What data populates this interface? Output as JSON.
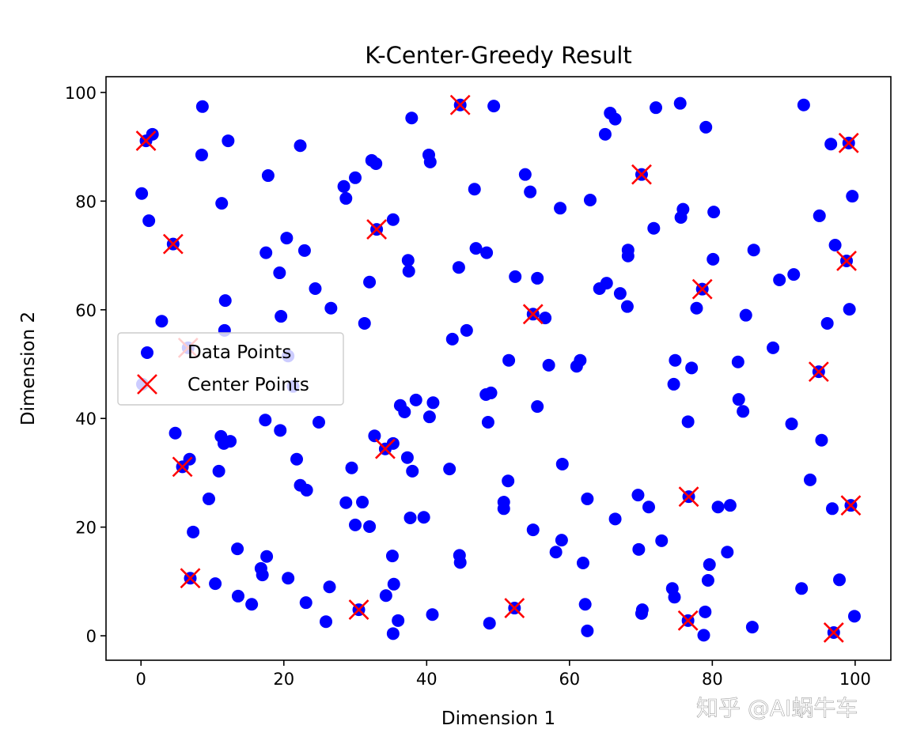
{
  "chart_data": {
    "type": "scatter",
    "title": "K-Center-Greedy Result",
    "xlabel": "Dimension 1",
    "ylabel": "Dimension 2",
    "xlim": [
      -4.9,
      105
    ],
    "ylim": [
      -4.5,
      102.9
    ],
    "xticks": [
      0,
      20,
      40,
      60,
      80,
      100
    ],
    "yticks": [
      0,
      20,
      40,
      60,
      80,
      100
    ],
    "grid": false,
    "legend_placement": "center-left",
    "series": [
      {
        "name": "Data Points",
        "color": "#0000ff",
        "marker": "circle",
        "points": [
          [
            0.7,
            91.1
          ],
          [
            1.6,
            92.3
          ],
          [
            0.1,
            81.4
          ],
          [
            1.1,
            76.4
          ],
          [
            2.9,
            57.9
          ],
          [
            4.5,
            72.1
          ],
          [
            8.6,
            97.4
          ],
          [
            8.5,
            88.5
          ],
          [
            12.2,
            91.1
          ],
          [
            11.3,
            79.6
          ],
          [
            11.8,
            61.7
          ],
          [
            11.7,
            56.2
          ],
          [
            17.8,
            84.7
          ],
          [
            22.3,
            90.2
          ],
          [
            17.5,
            70.5
          ],
          [
            20.4,
            73.2
          ],
          [
            22.9,
            70.9
          ],
          [
            19.4,
            66.8
          ],
          [
            19.6,
            58.8
          ],
          [
            24.4,
            63.9
          ],
          [
            26.6,
            60.3
          ],
          [
            28.4,
            82.7
          ],
          [
            28.7,
            80.5
          ],
          [
            30.0,
            84.3
          ],
          [
            32.3,
            87.5
          ],
          [
            32.9,
            86.9
          ],
          [
            33.0,
            74.8
          ],
          [
            35.3,
            76.6
          ],
          [
            37.9,
            95.3
          ],
          [
            40.3,
            88.5
          ],
          [
            40.5,
            87.2
          ],
          [
            32.0,
            65.1
          ],
          [
            31.3,
            57.5
          ],
          [
            37.4,
            69.1
          ],
          [
            37.5,
            67.1
          ],
          [
            44.7,
            97.7
          ],
          [
            49.4,
            97.5
          ],
          [
            46.7,
            82.2
          ],
          [
            44.5,
            67.8
          ],
          [
            46.9,
            71.3
          ],
          [
            48.4,
            70.5
          ],
          [
            53.8,
            84.9
          ],
          [
            54.5,
            81.7
          ],
          [
            52.4,
            66.1
          ],
          [
            55.5,
            65.8
          ],
          [
            58.7,
            78.7
          ],
          [
            62.9,
            80.2
          ],
          [
            54.9,
            59.2
          ],
          [
            56.6,
            58.5
          ],
          [
            43.6,
            54.6
          ],
          [
            45.6,
            56.2
          ],
          [
            51.5,
            50.7
          ],
          [
            57.1,
            49.8
          ],
          [
            61.5,
            50.7
          ],
          [
            61.0,
            49.6
          ],
          [
            55.5,
            42.2
          ],
          [
            48.3,
            44.4
          ],
          [
            49.0,
            44.7
          ],
          [
            48.6,
            39.3
          ],
          [
            36.3,
            42.4
          ],
          [
            36.9,
            41.2
          ],
          [
            38.5,
            43.4
          ],
          [
            40.9,
            42.9
          ],
          [
            40.4,
            40.3
          ],
          [
            65.7,
            96.2
          ],
          [
            66.4,
            95.1
          ],
          [
            65.0,
            92.3
          ],
          [
            72.1,
            97.2
          ],
          [
            75.5,
            98.0
          ],
          [
            79.1,
            93.6
          ],
          [
            70.1,
            84.9
          ],
          [
            71.8,
            75.0
          ],
          [
            75.9,
            78.5
          ],
          [
            75.6,
            77.0
          ],
          [
            80.2,
            78.0
          ],
          [
            68.2,
            71.0
          ],
          [
            68.2,
            69.9
          ],
          [
            65.2,
            64.9
          ],
          [
            64.2,
            63.9
          ],
          [
            67.1,
            63.0
          ],
          [
            68.1,
            60.6
          ],
          [
            78.6,
            63.8
          ],
          [
            77.8,
            60.3
          ],
          [
            80.1,
            69.3
          ],
          [
            85.8,
            71.0
          ],
          [
            84.7,
            59.0
          ],
          [
            89.4,
            65.5
          ],
          [
            91.4,
            66.5
          ],
          [
            92.8,
            97.7
          ],
          [
            96.6,
            90.5
          ],
          [
            99.1,
            90.7
          ],
          [
            99.6,
            80.9
          ],
          [
            95.0,
            77.3
          ],
          [
            97.2,
            71.9
          ],
          [
            98.8,
            69.0
          ],
          [
            99.2,
            60.1
          ],
          [
            96.1,
            57.5
          ],
          [
            94.9,
            48.6
          ],
          [
            88.5,
            53.0
          ],
          [
            83.6,
            50.4
          ],
          [
            74.8,
            50.7
          ],
          [
            77.1,
            49.3
          ],
          [
            74.6,
            46.3
          ],
          [
            83.7,
            43.5
          ],
          [
            84.3,
            41.3
          ],
          [
            76.6,
            39.4
          ],
          [
            91.1,
            39.0
          ],
          [
            95.3,
            36.0
          ],
          [
            93.7,
            28.7
          ],
          [
            96.8,
            23.4
          ],
          [
            99.4,
            24.0
          ],
          [
            92.5,
            8.7
          ],
          [
            97.8,
            10.3
          ],
          [
            99.9,
            3.6
          ],
          [
            97.0,
            0.6
          ],
          [
            85.6,
            1.6
          ],
          [
            79.0,
            4.4
          ],
          [
            78.8,
            0.1
          ],
          [
            76.6,
            2.8
          ],
          [
            74.4,
            8.7
          ],
          [
            74.7,
            7.1
          ],
          [
            79.4,
            10.2
          ],
          [
            79.6,
            13.1
          ],
          [
            82.1,
            15.4
          ],
          [
            80.8,
            23.7
          ],
          [
            82.5,
            24.0
          ],
          [
            76.7,
            25.6
          ],
          [
            69.6,
            25.9
          ],
          [
            71.1,
            23.7
          ],
          [
            69.7,
            15.9
          ],
          [
            72.9,
            17.5
          ],
          [
            70.2,
            4.8
          ],
          [
            70.1,
            4.1
          ],
          [
            66.4,
            21.5
          ],
          [
            62.5,
            25.2
          ],
          [
            59.0,
            31.6
          ],
          [
            51.4,
            28.5
          ],
          [
            50.8,
            24.6
          ],
          [
            50.8,
            23.4
          ],
          [
            54.9,
            19.5
          ],
          [
            58.9,
            17.6
          ],
          [
            58.1,
            15.4
          ],
          [
            61.9,
            13.4
          ],
          [
            62.2,
            5.8
          ],
          [
            62.5,
            0.9
          ],
          [
            52.3,
            5.1
          ],
          [
            48.8,
            2.3
          ],
          [
            40.8,
            3.9
          ],
          [
            36.0,
            2.8
          ],
          [
            35.3,
            0.4
          ],
          [
            34.3,
            7.4
          ],
          [
            35.4,
            9.5
          ],
          [
            35.2,
            14.7
          ],
          [
            44.6,
            14.8
          ],
          [
            44.7,
            13.5
          ],
          [
            39.6,
            21.8
          ],
          [
            37.7,
            21.7
          ],
          [
            43.2,
            30.7
          ],
          [
            38.0,
            30.3
          ],
          [
            37.3,
            32.8
          ],
          [
            34.2,
            34.4
          ],
          [
            35.3,
            35.4
          ],
          [
            32.7,
            36.8
          ],
          [
            30.5,
            4.8
          ],
          [
            31.0,
            24.6
          ],
          [
            32.0,
            20.1
          ],
          [
            30.0,
            20.4
          ],
          [
            28.7,
            24.5
          ],
          [
            29.5,
            30.9
          ],
          [
            26.4,
            9.0
          ],
          [
            25.9,
            2.6
          ],
          [
            23.1,
            6.1
          ],
          [
            20.6,
            10.6
          ],
          [
            23.2,
            26.8
          ],
          [
            22.3,
            27.7
          ],
          [
            21.8,
            32.5
          ],
          [
            24.9,
            39.3
          ],
          [
            19.5,
            37.8
          ],
          [
            17.4,
            39.7
          ],
          [
            17.6,
            14.6
          ],
          [
            17.0,
            11.2
          ],
          [
            16.8,
            12.4
          ],
          [
            15.5,
            5.8
          ],
          [
            13.6,
            7.3
          ],
          [
            13.5,
            16.0
          ],
          [
            10.4,
            9.6
          ],
          [
            6.9,
            10.6
          ],
          [
            7.3,
            19.1
          ],
          [
            9.5,
            25.2
          ],
          [
            10.9,
            30.3
          ],
          [
            6.8,
            32.5
          ],
          [
            5.8,
            31.1
          ],
          [
            4.8,
            37.3
          ],
          [
            11.2,
            36.7
          ],
          [
            11.6,
            35.4
          ],
          [
            12.5,
            35.8
          ],
          [
            20.6,
            51.5
          ],
          [
            21.3,
            45.9
          ],
          [
            6.6,
            53.0
          ],
          [
            0.2,
            46.3
          ]
        ]
      },
      {
        "name": "Center Points",
        "color": "#ff0000",
        "marker": "x",
        "points": [
          [
            0.7,
            91.1
          ],
          [
            4.5,
            72.1
          ],
          [
            33.0,
            74.8
          ],
          [
            44.7,
            97.7
          ],
          [
            70.1,
            84.9
          ],
          [
            99.1,
            90.7
          ],
          [
            98.8,
            69.0
          ],
          [
            78.6,
            63.8
          ],
          [
            54.9,
            59.2
          ],
          [
            94.9,
            48.6
          ],
          [
            99.4,
            24.0
          ],
          [
            76.7,
            25.6
          ],
          [
            97.0,
            0.6
          ],
          [
            76.6,
            2.8
          ],
          [
            52.3,
            5.1
          ],
          [
            30.5,
            4.8
          ],
          [
            34.2,
            34.4
          ],
          [
            5.8,
            31.1
          ],
          [
            6.9,
            10.6
          ],
          [
            6.6,
            53.0
          ]
        ]
      }
    ]
  },
  "watermark": "知乎 @AI蜗牛车"
}
